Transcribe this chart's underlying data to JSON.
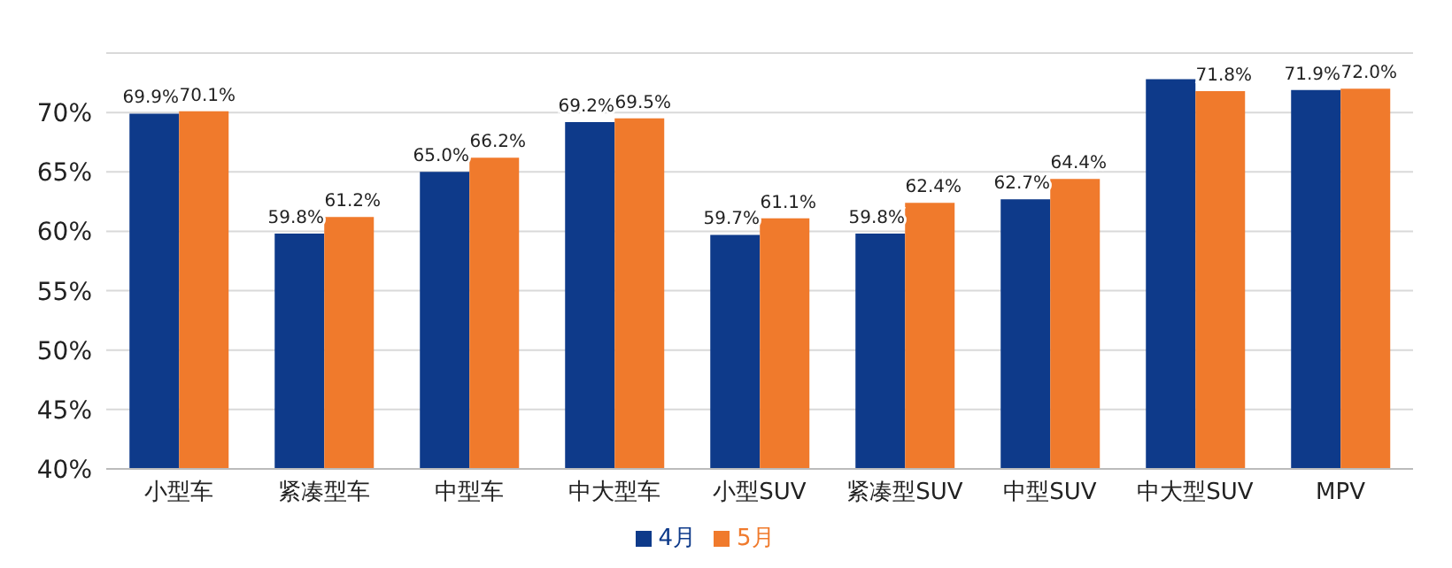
{
  "chart_data": {
    "type": "bar",
    "categories": [
      "小型车",
      "紧凑型车",
      "中型车",
      "中大型车",
      "小型SUV",
      "紧凑型SUV",
      "中型SUV",
      "中大型SUV",
      "MPV"
    ],
    "series": [
      {
        "name": "4月",
        "color": "#0e3a8a",
        "values": [
          69.9,
          59.8,
          65.0,
          69.2,
          59.7,
          59.8,
          62.7,
          72.8,
          71.9
        ],
        "value_labels": [
          "69.9%",
          "59.8%",
          "65.0%",
          "69.2%",
          "59.7%",
          "59.8%",
          "62.7%",
          null,
          "71.9%"
        ]
      },
      {
        "name": "5月",
        "color": "#f07a2c",
        "values": [
          70.1,
          61.2,
          66.2,
          69.5,
          61.1,
          62.4,
          64.4,
          71.8,
          72.0
        ],
        "value_labels": [
          "70.1%",
          "61.2%",
          "66.2%",
          "69.5%",
          "61.1%",
          "62.4%",
          "64.4%",
          "71.8%",
          "72.0%"
        ]
      }
    ],
    "ylim": [
      40,
      75
    ],
    "yticks": [
      {
        "value": 40,
        "label": "40%"
      },
      {
        "value": 45,
        "label": "45%"
      },
      {
        "value": 50,
        "label": "50%"
      },
      {
        "value": 55,
        "label": "55%"
      },
      {
        "value": 60,
        "label": "60%"
      },
      {
        "value": 65,
        "label": "65%"
      },
      {
        "value": 70,
        "label": "70%"
      }
    ],
    "grid": "y",
    "legend": "bottom"
  }
}
